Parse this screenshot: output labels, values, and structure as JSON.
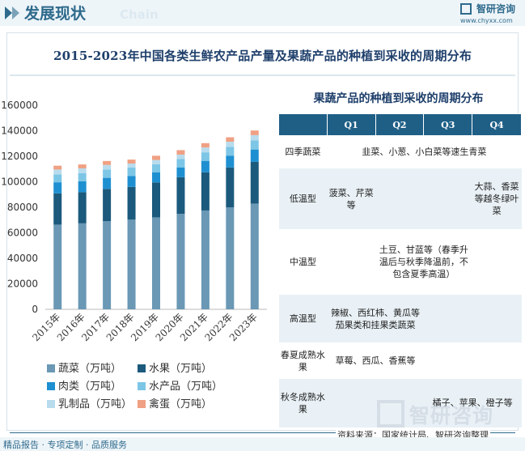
{
  "header": {
    "title": "发展现状",
    "ghost": "Chain",
    "logo_name": "智研咨询",
    "logo_url": "www.chyxx.com"
  },
  "main_title": "2015-2023年中国各类生鲜农产品产量及果蔬产品的种植到采收的周期分布",
  "colors": {
    "vegetable": "#6a98b5",
    "fruit": "#1b5a7c",
    "meat": "#1e90d1",
    "aquatic": "#7dc6e6",
    "dairy": "#b8dced",
    "egg": "#f0a083",
    "table_header": "#1f5f86",
    "row_alt": "#e9f1f6"
  },
  "chart_data": {
    "type": "bar",
    "stacked": true,
    "categories": [
      "2015年",
      "2016年",
      "2017年",
      "2018年",
      "2019年",
      "2020年",
      "2021年",
      "2022年",
      "2023年"
    ],
    "ylim": [
      0,
      160000
    ],
    "yticks": [
      "0",
      "20000",
      "40000",
      "60000",
      "80000",
      "100000",
      "120000",
      "140000",
      "160000"
    ],
    "grid": false,
    "legend_position": "bottom-left",
    "series": [
      {
        "name": "蔬菜（万吨）",
        "color": "#6a98b5",
        "values": [
          66400,
          67400,
          69200,
          70300,
          72100,
          74900,
          77500,
          79900,
          82900
        ]
      },
      {
        "name": "水果（万吨）",
        "color": "#1b5a7c",
        "values": [
          24500,
          24400,
          25200,
          25700,
          27400,
          28700,
          29900,
          31300,
          32700
        ]
      },
      {
        "name": "肉类（万吨）",
        "color": "#1e90d1",
        "values": [
          8700,
          8600,
          8700,
          8600,
          7800,
          7700,
          9000,
          9300,
          9700
        ]
      },
      {
        "name": "水产品（万吨）",
        "color": "#7dc6e6",
        "values": [
          6200,
          6400,
          6400,
          6500,
          6500,
          6500,
          6700,
          6900,
          7100
        ]
      },
      {
        "name": "乳制品（万吨）",
        "color": "#b8dced",
        "values": [
          3800,
          3700,
          3700,
          3200,
          3300,
          3500,
          3800,
          4000,
          4200
        ]
      },
      {
        "name": "禽蛋（万吨）",
        "color": "#f0a083",
        "values": [
          3000,
          3100,
          3100,
          3100,
          3300,
          3500,
          3400,
          3500,
          3600
        ]
      }
    ]
  },
  "legend": {
    "items": [
      "蔬菜（万吨）",
      "水果（万吨）",
      "肉类（万吨）",
      "水产品（万吨）",
      "乳制品（万吨）",
      "禽蛋（万吨）"
    ]
  },
  "table": {
    "title": "果蔬产品的种植到采收的周期分布",
    "headers": [
      "",
      "Q1",
      "Q2",
      "Q3",
      "Q4"
    ],
    "rows": [
      {
        "label": "四季蔬菜",
        "span_text": "韭菜、小葱、小白菜等速生青菜"
      },
      {
        "label": "低温型",
        "q1": "菠菜、芹菜等",
        "q4": "大蒜、香菜等越冬绿叶菜"
      },
      {
        "label": "中温型",
        "q2q3": "土豆、甘蓝等（春季升温后与秋季降温前，不包含夏季高温）"
      },
      {
        "label": "高温型",
        "q2": "辣椒、西红柿、黄瓜等茄果类和挂果类蔬菜"
      },
      {
        "label": "春夏成熟水果",
        "q2": "草莓、西瓜、香蕉等"
      },
      {
        "label": "秋冬成熟水果",
        "q3": "橘子、苹果、橙子等"
      }
    ]
  },
  "footer": {
    "source": "资料来源：国家统计局、智研咨询整理",
    "slogan": "精品报告 · 专项定制 · 品质服务",
    "watermark": "智研咨询"
  }
}
